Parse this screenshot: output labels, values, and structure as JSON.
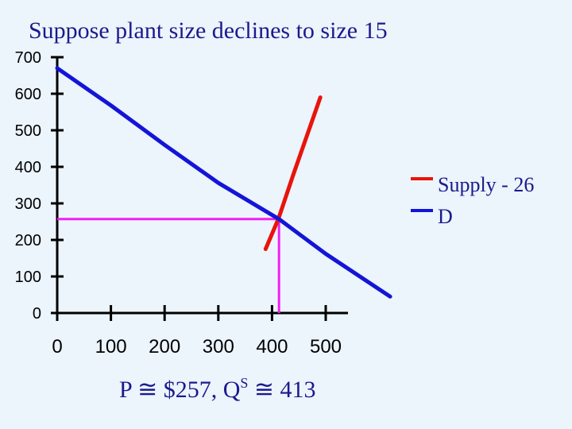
{
  "chart_data": {
    "type": "line",
    "title": "Suppose plant size declines to size 15",
    "xlabel": "",
    "ylabel": "",
    "xlim": [
      0,
      500
    ],
    "ylim": [
      0,
      700
    ],
    "x_ticks": [
      "0",
      "100",
      "200",
      "300",
      "400",
      "500"
    ],
    "y_ticks": [
      "0",
      "100",
      "200",
      "300",
      "400",
      "500",
      "600",
      "700"
    ],
    "legend_position": "right",
    "series": [
      {
        "name": "Supply - 26",
        "color": "#e8140c",
        "points": [
          [
            388,
            175
          ],
          [
            412,
            258
          ],
          [
            440,
            380
          ],
          [
            490,
            590
          ]
        ]
      },
      {
        "name": "D",
        "color": "#1414d8",
        "points": [
          [
            0,
            670
          ],
          [
            100,
            568
          ],
          [
            200,
            460
          ],
          [
            300,
            356
          ],
          [
            413,
            257
          ],
          [
            500,
            162
          ],
          [
            620,
            45
          ]
        ]
      }
    ],
    "equilibrium": {
      "price": 257,
      "quantity": 413,
      "color": "#f020f0"
    },
    "caption": {
      "price_part": "P ≅ $257,  Q",
      "superscript": "S",
      "quantity_part": " ≅ 413"
    }
  }
}
